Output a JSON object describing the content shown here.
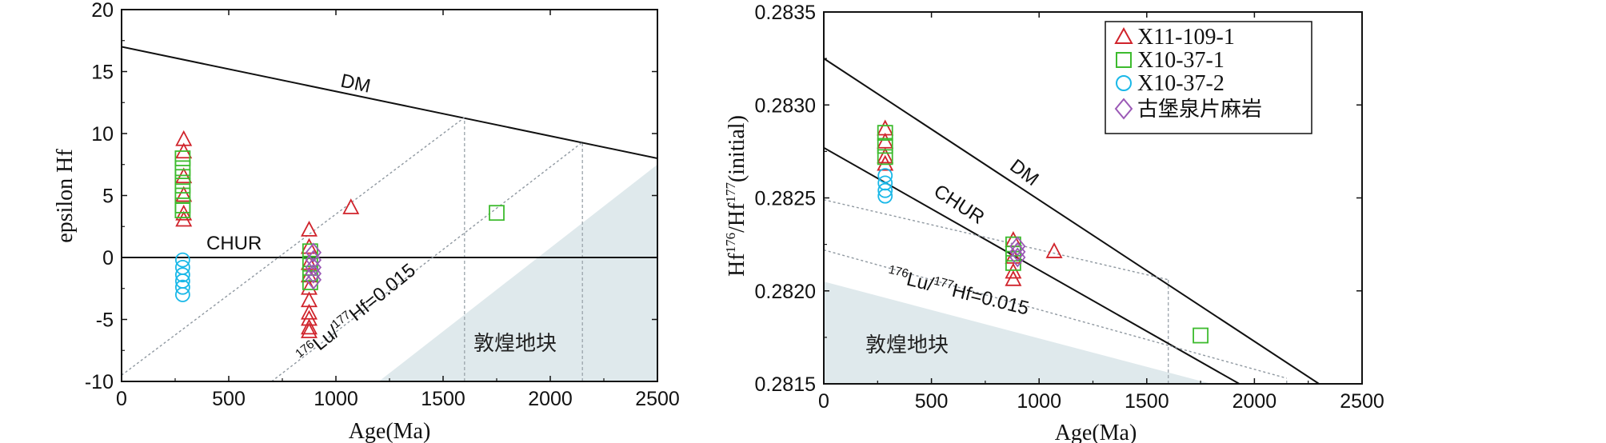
{
  "chart_data": [
    {
      "type": "scatter",
      "panel": "left",
      "xlabel": "Age(Ma)",
      "ylabel": "epsilon Hf",
      "xlim": [
        0,
        2500
      ],
      "ylim": [
        -10,
        20
      ],
      "xticks": [
        0,
        500,
        1000,
        1500,
        2000,
        2500
      ],
      "yticks": [
        -10,
        -5,
        0,
        5,
        10,
        15,
        20
      ],
      "x_tick_labels": [
        "0",
        "500",
        "1000",
        "1500",
        "2000",
        "2500"
      ],
      "y_tick_labels": [
        "-10",
        "-5",
        "0",
        "5",
        "10",
        "15",
        "20"
      ],
      "reference_lines": [
        {
          "name": "DM",
          "label": "DM",
          "points": [
            [
              0,
              17
            ],
            [
              2500,
              8
            ]
          ]
        },
        {
          "name": "CHUR",
          "label": "CHUR",
          "points": [
            [
              0,
              0
            ],
            [
              2500,
              0
            ]
          ]
        },
        {
          "name": "evolution-1",
          "style": "dotted",
          "points": [
            [
              0,
              -9.5
            ],
            [
              1600,
              11.3
            ]
          ]
        },
        {
          "name": "evolution-2",
          "style": "dotted",
          "points": [
            [
              700,
              -10
            ],
            [
              2150,
              9.3
            ]
          ]
        }
      ],
      "guide_lines": [
        {
          "x": 1600,
          "y_from": -10,
          "y_to": 11.3
        },
        {
          "x": 2150,
          "y_from": -10,
          "y_to": 9.3
        }
      ],
      "evolution_label": {
        "pre_sup": "176",
        "mid": "Lu/",
        "mid_sup": "177",
        "post": "Hf=0.015"
      },
      "shaded_region": {
        "label": "敦煌地块",
        "points": [
          [
            1200,
            -10
          ],
          [
            2500,
            -10
          ],
          [
            2500,
            7.5
          ]
        ]
      },
      "series": [
        {
          "name": "X11-109-1",
          "marker": "triangle",
          "color": "#d0232b",
          "points": [
            [
              290,
              9.5
            ],
            [
              290,
              8.5
            ],
            [
              290,
              6.5
            ],
            [
              290,
              5
            ],
            [
              290,
              3.5
            ],
            [
              290,
              3
            ],
            [
              875,
              2.2
            ],
            [
              875,
              0.8
            ],
            [
              875,
              -0.5
            ],
            [
              875,
              -1.5
            ],
            [
              875,
              -2.5
            ],
            [
              875,
              -3.5
            ],
            [
              875,
              -4.5
            ],
            [
              875,
              -5
            ],
            [
              875,
              -5.7
            ],
            [
              875,
              -6
            ],
            [
              1070,
              4
            ]
          ]
        },
        {
          "name": "X10-37-1",
          "marker": "square",
          "color": "#3dbb2e",
          "points": [
            [
              285,
              8
            ],
            [
              285,
              7.2
            ],
            [
              285,
              6.5
            ],
            [
              285,
              5.8
            ],
            [
              285,
              5
            ],
            [
              285,
              4.2
            ],
            [
              285,
              3.8
            ],
            [
              880,
              0.5
            ],
            [
              880,
              -0.5
            ],
            [
              880,
              -1.3
            ],
            [
              880,
              -2
            ],
            [
              1750,
              3.6
            ]
          ]
        },
        {
          "name": "X10-37-2",
          "marker": "circle",
          "color": "#1ab8e8",
          "points": [
            [
              285,
              -0.2
            ],
            [
              285,
              -0.8
            ],
            [
              285,
              -1.4
            ],
            [
              285,
              -1.9
            ],
            [
              285,
              -2.4
            ],
            [
              285,
              -3
            ]
          ]
        },
        {
          "name": "古堡泉片麻岩",
          "marker": "diamond",
          "color": "#9b59b6",
          "points": [
            [
              895,
              0.4
            ],
            [
              895,
              -0.2
            ],
            [
              895,
              -0.8
            ],
            [
              895,
              -1.3
            ],
            [
              895,
              -1.8
            ]
          ]
        }
      ]
    },
    {
      "type": "scatter",
      "panel": "right",
      "xlabel": "Age(Ma)",
      "ylabel_parts": {
        "a": "Hf",
        "a_sup": "176",
        "b": "/Hf",
        "b_sup": "177",
        "c": "(initial)"
      },
      "xlim": [
        0,
        2500
      ],
      "ylim": [
        0.2815,
        0.2835
      ],
      "xticks": [
        0,
        500,
        1000,
        1500,
        2000,
        2500
      ],
      "yticks": [
        0.2815,
        0.282,
        0.2825,
        0.283,
        0.2835
      ],
      "x_tick_labels": [
        "0",
        "500",
        "1000",
        "1500",
        "2000",
        "2500"
      ],
      "y_tick_labels": [
        "0.2815",
        "0.2820",
        "0.2825",
        "0.2830",
        "0.2835"
      ],
      "reference_lines": [
        {
          "name": "DM",
          "label": "DM",
          "points": [
            [
              0,
              0.28325
            ],
            [
              2300,
              0.2815
            ]
          ]
        },
        {
          "name": "CHUR",
          "label": "CHUR",
          "points": [
            [
              0,
              0.28277
            ],
            [
              1930,
              0.2815
            ]
          ]
        },
        {
          "name": "evolution-1",
          "style": "dotted",
          "points": [
            [
              0,
              0.28249
            ],
            [
              1600,
              0.28206
            ]
          ]
        },
        {
          "name": "evolution-2",
          "style": "dotted",
          "points": [
            [
              0,
              0.28222
            ],
            [
              2150,
              0.28153
            ]
          ]
        }
      ],
      "guide_lines": [
        {
          "x": 1600,
          "y_from": 0.2815,
          "y_to": 0.28206
        },
        {
          "x": 2150,
          "y_from": 0.2815,
          "y_to": 0.28153
        }
      ],
      "evolution_label": {
        "pre_sup": "176",
        "mid": "Lu/",
        "mid_sup": "177",
        "post": "Hf=0.015"
      },
      "shaded_region": {
        "label": "敦煌地块",
        "points": [
          [
            0,
            0.2815
          ],
          [
            0,
            0.28205
          ],
          [
            1800,
            0.2815
          ]
        ]
      },
      "legend": {
        "position": "top-right",
        "entries": [
          "X11-109-1",
          "X10-37-1",
          "X10-37-2",
          "古堡泉片麻岩"
        ]
      },
      "series": [
        {
          "name": "X11-109-1",
          "marker": "triangle",
          "color": "#d0232b",
          "points": [
            [
              285,
              0.28287
            ],
            [
              285,
              0.2828
            ],
            [
              285,
              0.28272
            ],
            [
              285,
              0.28268
            ],
            [
              880,
              0.28227
            ],
            [
              880,
              0.28218
            ],
            [
              880,
              0.2821
            ],
            [
              880,
              0.28206
            ],
            [
              1070,
              0.28221
            ]
          ]
        },
        {
          "name": "X10-37-1",
          "marker": "square",
          "color": "#3dbb2e",
          "points": [
            [
              285,
              0.28285
            ],
            [
              285,
              0.28278
            ],
            [
              285,
              0.28272
            ],
            [
              880,
              0.28225
            ],
            [
              880,
              0.2822
            ],
            [
              880,
              0.28215
            ],
            [
              1750,
              0.28176
            ]
          ]
        },
        {
          "name": "X10-37-2",
          "marker": "circle",
          "color": "#1ab8e8",
          "points": [
            [
              285,
              0.28262
            ],
            [
              285,
              0.28258
            ],
            [
              285,
              0.28254
            ],
            [
              285,
              0.28251
            ]
          ]
        },
        {
          "name": "古堡泉片麻岩",
          "marker": "diamond",
          "color": "#9b59b6",
          "points": [
            [
              900,
              0.28224
            ],
            [
              900,
              0.28221
            ],
            [
              900,
              0.28218
            ]
          ]
        }
      ]
    }
  ]
}
